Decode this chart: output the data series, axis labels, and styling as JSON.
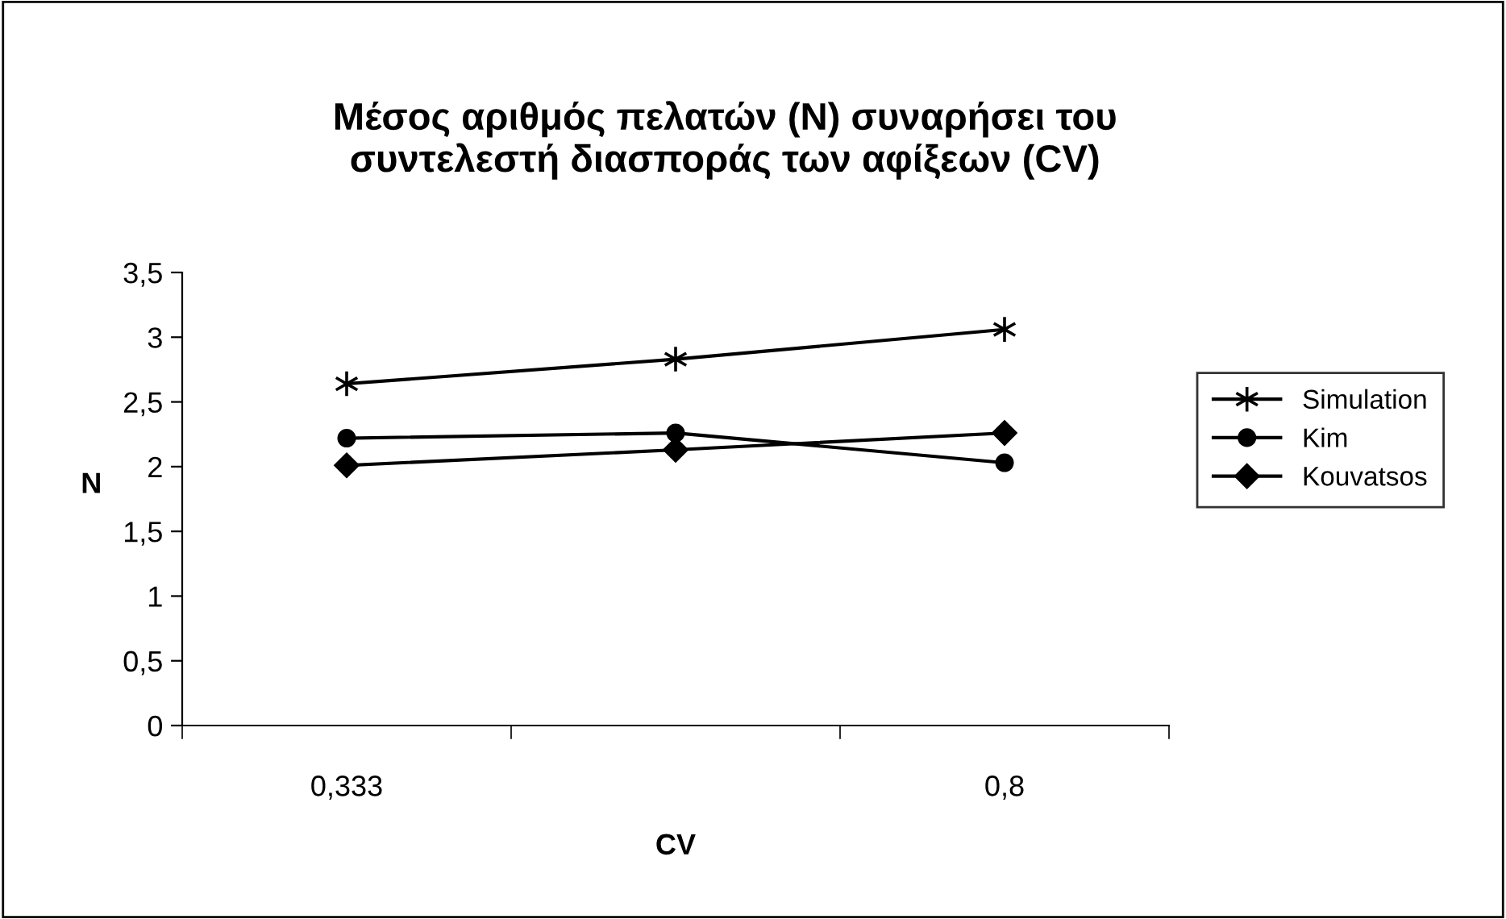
{
  "chart_data": {
    "type": "line",
    "title": "Μέσος αριθμός πελατών (N) συναρήσει του\nσυντελεστή διασποράς των αφίξεων (CV)",
    "xlabel": "CV",
    "ylabel": "N",
    "categories": [
      "0,333",
      null,
      "0,8"
    ],
    "series": [
      {
        "name": "Simulation",
        "color": "#000000",
        "values": [
          2.64,
          2.83,
          3.06
        ],
        "marker": "cross"
      },
      {
        "name": "Kim",
        "color": "#000000",
        "values": [
          2.22,
          2.26,
          2.03
        ],
        "marker": "circle"
      },
      {
        "name": "Kouvatsos",
        "color": "#000000",
        "values": [
          2.01,
          2.13,
          2.26
        ],
        "marker": "diamond"
      }
    ],
    "ylim": [
      0,
      3.5
    ],
    "yticks": [
      0,
      {
        "value": 0.5,
        "label": "0,5"
      },
      1,
      {
        "value": 1.5,
        "label": "1,5"
      },
      2,
      {
        "value": 2.5,
        "label": "2,5"
      },
      3,
      {
        "value": 3.5,
        "label": "3,5"
      }
    ],
    "grid": false,
    "legend": "right",
    "line_style": "solid"
  }
}
